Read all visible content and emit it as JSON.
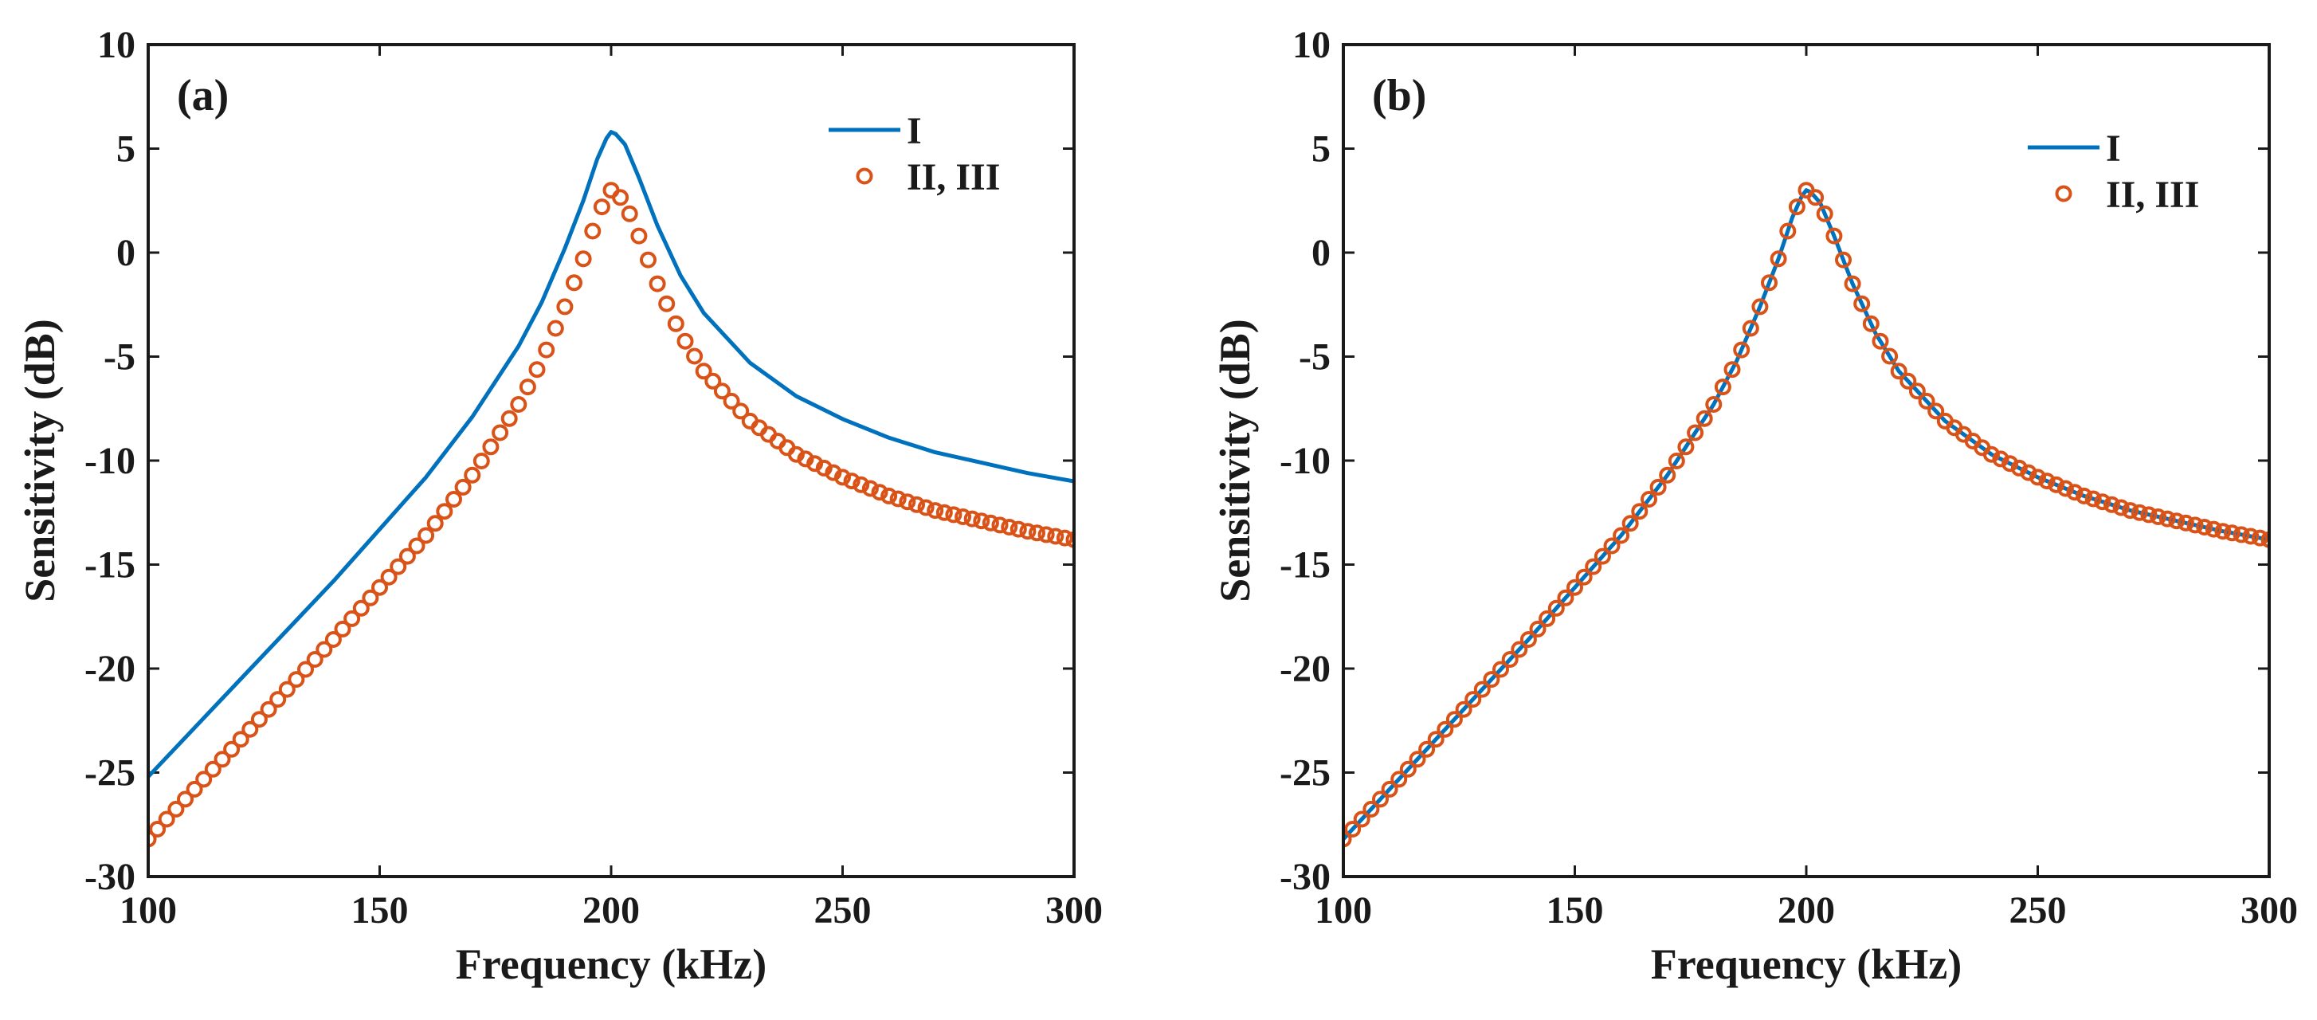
{
  "colors": {
    "series_I": "#0072BD",
    "series_II_III": "#D95319",
    "axes": "#1a1a1a"
  },
  "chart_data": [
    {
      "type": "line",
      "panel_label": "(a)",
      "xlabel": "Frequency (kHz)",
      "ylabel": "Sensitivity (dB)",
      "xlim": [
        100,
        300
      ],
      "ylim": [
        -30,
        10
      ],
      "xticks": [
        100,
        150,
        200,
        250,
        300
      ],
      "yticks": [
        10,
        5,
        0,
        -5,
        -10,
        -15,
        -20,
        -25,
        -30
      ],
      "grid": false,
      "legend_position": "top-right",
      "series": [
        {
          "name": "I",
          "style": "line",
          "points": [
            [
              100,
              -25.2
            ],
            [
              120,
              -20.5
            ],
            [
              140,
              -15.8
            ],
            [
              160,
              -10.8
            ],
            [
              170,
              -7.9
            ],
            [
              180,
              -4.5
            ],
            [
              185,
              -2.4
            ],
            [
              190,
              0.2
            ],
            [
              194,
              2.5
            ],
            [
              197,
              4.5
            ],
            [
              199,
              5.5
            ],
            [
              200,
              5.8
            ],
            [
              201,
              5.7
            ],
            [
              203,
              5.2
            ],
            [
              206,
              3.6
            ],
            [
              210,
              1.3
            ],
            [
              215,
              -1.1
            ],
            [
              220,
              -2.9
            ],
            [
              230,
              -5.3
            ],
            [
              240,
              -6.9
            ],
            [
              250,
              -8.0
            ],
            [
              260,
              -8.9
            ],
            [
              270,
              -9.6
            ],
            [
              280,
              -10.1
            ],
            [
              290,
              -10.6
            ],
            [
              300,
              -11.0
            ]
          ]
        },
        {
          "name": "II, III",
          "style": "markers",
          "points": [
            [
              100,
              -28.2
            ],
            [
              120,
              -23.4
            ],
            [
              140,
              -18.6
            ],
            [
              160,
              -13.6
            ],
            [
              170,
              -10.7
            ],
            [
              180,
              -7.3
            ],
            [
              185,
              -5.2
            ],
            [
              190,
              -2.6
            ],
            [
              194,
              -0.3
            ],
            [
              197,
              1.7
            ],
            [
              199,
              2.7
            ],
            [
              200,
              3.0
            ],
            [
              201,
              2.9
            ],
            [
              203,
              2.4
            ],
            [
              206,
              0.8
            ],
            [
              210,
              -1.5
            ],
            [
              215,
              -3.9
            ],
            [
              220,
              -5.7
            ],
            [
              230,
              -8.1
            ],
            [
              240,
              -9.7
            ],
            [
              250,
              -10.8
            ],
            [
              260,
              -11.7
            ],
            [
              270,
              -12.4
            ],
            [
              280,
              -12.9
            ],
            [
              290,
              -13.4
            ],
            [
              300,
              -13.8
            ]
          ]
        }
      ]
    },
    {
      "type": "line",
      "panel_label": "(b)",
      "xlabel": "Frequency (kHz)",
      "ylabel": "Sensitivity (dB)",
      "xlim": [
        100,
        300
      ],
      "ylim": [
        -30,
        10
      ],
      "xticks": [
        100,
        150,
        200,
        250,
        300
      ],
      "yticks": [
        10,
        5,
        0,
        -5,
        -10,
        -15,
        -20,
        -25,
        -30
      ],
      "grid": false,
      "legend_position": "top-right",
      "series": [
        {
          "name": "I",
          "style": "line",
          "points": [
            [
              100,
              -28.2
            ],
            [
              120,
              -23.4
            ],
            [
              140,
              -18.6
            ],
            [
              160,
              -13.6
            ],
            [
              170,
              -10.7
            ],
            [
              180,
              -7.3
            ],
            [
              185,
              -5.2
            ],
            [
              190,
              -2.6
            ],
            [
              194,
              -0.3
            ],
            [
              197,
              1.7
            ],
            [
              199,
              2.7
            ],
            [
              200,
              3.0
            ],
            [
              201,
              2.9
            ],
            [
              203,
              2.4
            ],
            [
              206,
              0.8
            ],
            [
              210,
              -1.5
            ],
            [
              215,
              -3.9
            ],
            [
              220,
              -5.7
            ],
            [
              230,
              -8.1
            ],
            [
              240,
              -9.7
            ],
            [
              250,
              -10.8
            ],
            [
              260,
              -11.7
            ],
            [
              270,
              -12.4
            ],
            [
              280,
              -12.9
            ],
            [
              290,
              -13.4
            ],
            [
              300,
              -13.8
            ]
          ]
        },
        {
          "name": "II, III",
          "style": "markers",
          "points": [
            [
              100,
              -28.2
            ],
            [
              120,
              -23.4
            ],
            [
              140,
              -18.6
            ],
            [
              160,
              -13.6
            ],
            [
              170,
              -10.7
            ],
            [
              180,
              -7.3
            ],
            [
              185,
              -5.2
            ],
            [
              190,
              -2.6
            ],
            [
              194,
              -0.3
            ],
            [
              197,
              1.7
            ],
            [
              199,
              2.7
            ],
            [
              200,
              3.0
            ],
            [
              201,
              2.9
            ],
            [
              203,
              2.4
            ],
            [
              206,
              0.8
            ],
            [
              210,
              -1.5
            ],
            [
              215,
              -3.9
            ],
            [
              220,
              -5.7
            ],
            [
              230,
              -8.1
            ],
            [
              240,
              -9.7
            ],
            [
              250,
              -10.8
            ],
            [
              260,
              -11.7
            ],
            [
              270,
              -12.4
            ],
            [
              280,
              -12.9
            ],
            [
              290,
              -13.4
            ],
            [
              300,
              -13.8
            ]
          ]
        }
      ]
    }
  ]
}
